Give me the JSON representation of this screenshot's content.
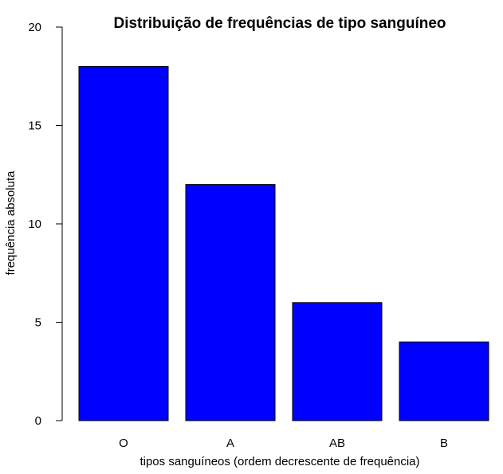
{
  "chart_data": {
    "type": "bar",
    "title": "Distribuição de frequências de tipo sanguíneo",
    "xlabel": "tipos sanguíneos (ordem decrescente de frequência)",
    "ylabel": "frequência absoluta",
    "categories": [
      "O",
      "A",
      "AB",
      "B"
    ],
    "values": [
      18,
      12,
      6,
      4
    ],
    "ylim": [
      0,
      20
    ],
    "yticks": [
      0,
      5,
      10,
      15,
      20
    ],
    "ytick_labels": [
      "0",
      "5",
      "10",
      "15",
      "20"
    ],
    "bar_color": "#0000FF",
    "bar_edge_color": "#000000",
    "grid": false,
    "legend": "none"
  }
}
